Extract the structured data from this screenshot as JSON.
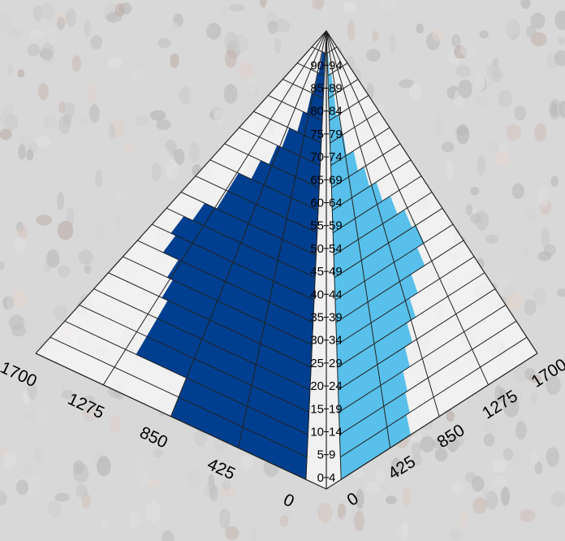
{
  "chart_data": {
    "type": "bar",
    "orientation": "horizontal",
    "style": "population-pyramid-3d",
    "categories": [
      "0-4",
      "5-9",
      "10-14",
      "15-19",
      "20-24",
      "25-29",
      "30-34",
      "35-39",
      "40-44",
      "45-49",
      "50-54",
      "55-59",
      "60-64",
      "65-69",
      "70-74",
      "75-79",
      "80-84",
      "85-89",
      "90-94"
    ],
    "series": [
      {
        "side": "left",
        "color": "#003f8f",
        "values": [
          850,
          850,
          1200,
          1200,
          1200,
          1250,
          1300,
          1450,
          1500,
          1400,
          1250,
          1250,
          1050,
          900,
          800,
          600,
          480,
          390,
          330
        ]
      },
      {
        "side": "right",
        "color": "#58c0ea",
        "values": [
          600,
          630,
          650,
          720,
          800,
          900,
          1000,
          1180,
          1280,
          1220,
          1100,
          950,
          800,
          650,
          450,
          400,
          300,
          290,
          120
        ]
      }
    ],
    "x_ticks": [
      "0",
      "425",
      "850",
      "1275",
      "1700"
    ],
    "xlim": [
      0,
      1700
    ],
    "grid": true,
    "legend": "none"
  },
  "colors": {
    "left": "#003f8f",
    "right": "#58c0ea",
    "grid": "#222222",
    "background": "#d6d6d6"
  }
}
